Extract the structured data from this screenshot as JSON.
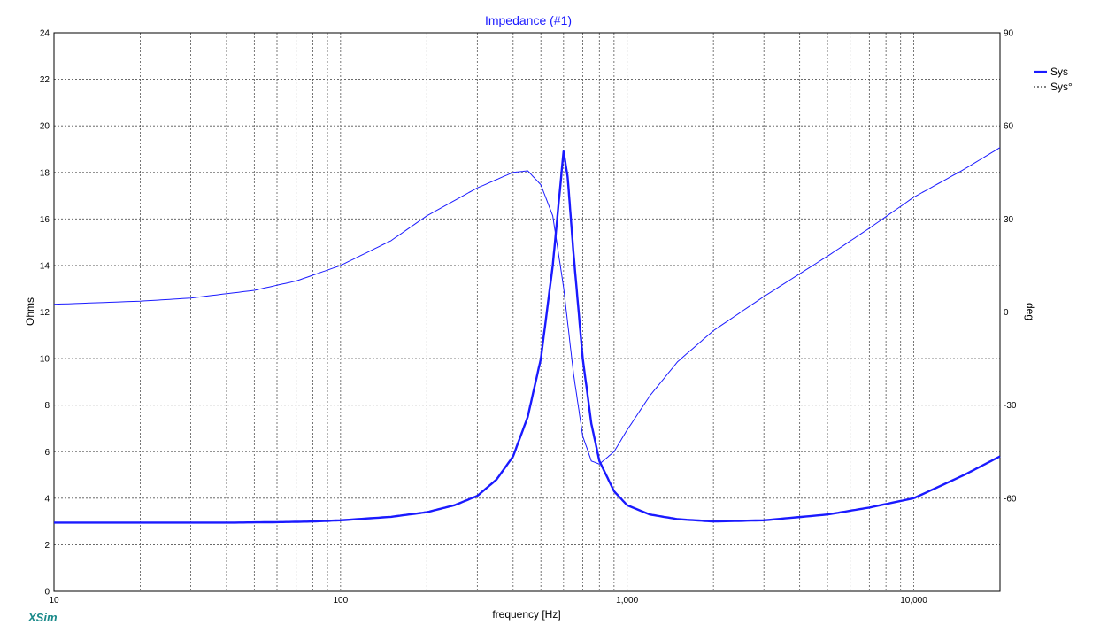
{
  "app": {
    "brand": "XSim"
  },
  "chart_data": {
    "type": "line",
    "title": "Impedance (#1)",
    "xlabel": "frequency [Hz]",
    "ylabel": "Ohms",
    "y2label": "deg",
    "xscale": "log",
    "xlim": [
      10,
      20000
    ],
    "ylim": [
      0,
      24
    ],
    "y2lim": [
      -90,
      90
    ],
    "grid": true,
    "legend_position": "top-right",
    "xticks": [
      {
        "value": 10,
        "label": "10"
      },
      {
        "value": 100,
        "label": "100"
      },
      {
        "value": 1000,
        "label": "1,000"
      },
      {
        "value": 10000,
        "label": "10,000"
      }
    ],
    "yticks": [
      0,
      2,
      4,
      6,
      8,
      10,
      12,
      14,
      16,
      18,
      20,
      22,
      24
    ],
    "y2ticks": [
      -60,
      -30,
      0,
      30,
      60,
      90
    ],
    "series": [
      {
        "name": "Sys",
        "axis": "left",
        "style": "solid-thick",
        "color": "#1a1aff",
        "points": [
          [
            10,
            2.95
          ],
          [
            20,
            2.95
          ],
          [
            40,
            2.95
          ],
          [
            60,
            2.97
          ],
          [
            80,
            3.0
          ],
          [
            100,
            3.05
          ],
          [
            150,
            3.2
          ],
          [
            200,
            3.4
          ],
          [
            250,
            3.7
          ],
          [
            300,
            4.1
          ],
          [
            350,
            4.8
          ],
          [
            400,
            5.8
          ],
          [
            450,
            7.5
          ],
          [
            500,
            10.0
          ],
          [
            550,
            14.0
          ],
          [
            580,
            17.0
          ],
          [
            600,
            18.9
          ],
          [
            620,
            17.8
          ],
          [
            650,
            14.5
          ],
          [
            700,
            10.0
          ],
          [
            750,
            7.2
          ],
          [
            800,
            5.6
          ],
          [
            900,
            4.3
          ],
          [
            1000,
            3.7
          ],
          [
            1200,
            3.3
          ],
          [
            1500,
            3.1
          ],
          [
            2000,
            3.0
          ],
          [
            3000,
            3.05
          ],
          [
            5000,
            3.3
          ],
          [
            7000,
            3.6
          ],
          [
            10000,
            4.0
          ],
          [
            15000,
            5.0
          ],
          [
            20000,
            5.8
          ]
        ]
      },
      {
        "name": "Sys°",
        "axis": "right",
        "style": "thin",
        "color": "#1a1aff",
        "points": [
          [
            10,
            2.5
          ],
          [
            20,
            3.5
          ],
          [
            30,
            4.5
          ],
          [
            50,
            7.0
          ],
          [
            70,
            10.0
          ],
          [
            100,
            15.0
          ],
          [
            150,
            23.0
          ],
          [
            200,
            31.0
          ],
          [
            300,
            40.0
          ],
          [
            400,
            45.0
          ],
          [
            450,
            45.5
          ],
          [
            500,
            41.0
          ],
          [
            550,
            31.0
          ],
          [
            600,
            8.0
          ],
          [
            650,
            -20.0
          ],
          [
            700,
            -40.0
          ],
          [
            750,
            -48.0
          ],
          [
            800,
            -49.0
          ],
          [
            900,
            -45.0
          ],
          [
            1000,
            -38.0
          ],
          [
            1200,
            -27.0
          ],
          [
            1500,
            -16.0
          ],
          [
            2000,
            -6.0
          ],
          [
            3000,
            5.0
          ],
          [
            5000,
            18.0
          ],
          [
            7000,
            27.0
          ],
          [
            10000,
            37.0
          ],
          [
            15000,
            46.0
          ],
          [
            20000,
            53.0
          ]
        ]
      }
    ]
  }
}
